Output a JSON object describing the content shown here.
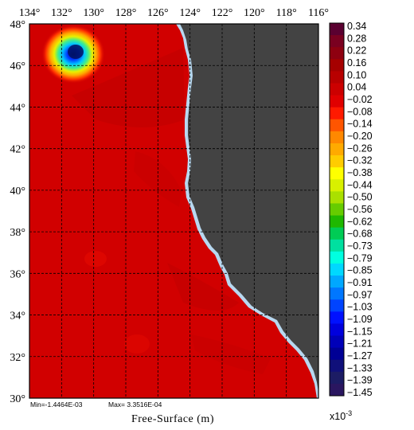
{
  "map": {
    "title": "Free-Surface (m)",
    "stats": {
      "min_text": "Min=-1.4464E-03",
      "max_text": "Max= 3.3516E-04"
    },
    "lon_labels": [
      "134°",
      "132°",
      "130°",
      "128°",
      "126°",
      "124°",
      "122°",
      "120°",
      "118°",
      "116°"
    ],
    "lat_labels": [
      "48°",
      "46°",
      "44°",
      "42°",
      "40°",
      "38°",
      "36°",
      "34°",
      "32°",
      "30°"
    ],
    "lon_range": [
      -134,
      -116
    ],
    "lat_range": [
      30,
      48
    ],
    "grid": true,
    "colors": {
      "land": "#434343",
      "ocean_base": "#d10000",
      "coast_fringe": "#b8d8f0",
      "gridline": "#000000"
    }
  },
  "colorbar": {
    "multiplier_text": "x10",
    "multiplier_exp": "-3",
    "labels": [
      "0.34",
      "0.28",
      "0.22",
      "0.16",
      "0.10",
      "0.04",
      "−0.02",
      "−0.08",
      "−0.14",
      "−0.20",
      "−0.26",
      "−0.32",
      "−0.38",
      "−0.44",
      "−0.50",
      "−0.56",
      "−0.62",
      "−0.68",
      "−0.73",
      "−0.79",
      "−0.85",
      "−0.91",
      "−0.97",
      "−1.03",
      "−1.09",
      "−1.15",
      "−1.21",
      "−1.27",
      "−1.33",
      "−1.39",
      "−1.45"
    ],
    "colors": [
      "#5a0030",
      "#7a0020",
      "#8e0010",
      "#a50000",
      "#b80000",
      "#cc0000",
      "#e00000",
      "#ff1a00",
      "#ff5500",
      "#ff8800",
      "#ffaa00",
      "#ffcc00",
      "#ffff00",
      "#d8f000",
      "#aae000",
      "#66cc00",
      "#1fb800",
      "#00cc55",
      "#00e0a0",
      "#00ffe0",
      "#00d8ff",
      "#00a8ff",
      "#0077ff",
      "#0044ff",
      "#0011ff",
      "#0000dd",
      "#0000b8",
      "#000095",
      "#10107a",
      "#1c1c64",
      "#2a1660"
    ]
  }
}
